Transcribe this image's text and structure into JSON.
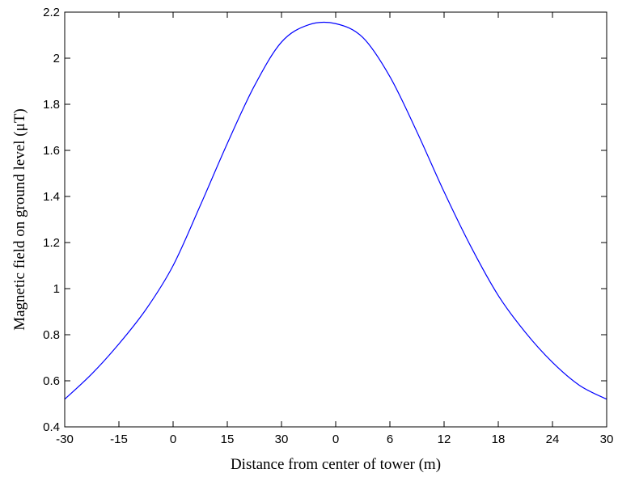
{
  "chart_data": {
    "type": "line",
    "title": "",
    "xlabel": "Distance from center of tower (m)",
    "ylabel": "Magnetic field on ground level (μT)",
    "x_tick_labels": [
      "-30",
      "-15",
      "0",
      "15",
      "30",
      "0",
      "6",
      "12",
      "18",
      "24",
      "30"
    ],
    "y_tick_labels": [
      "0.4",
      "0.6",
      "0.8",
      "1",
      "1.2",
      "1.4",
      "1.6",
      "1.8",
      "2",
      "2.2"
    ],
    "y_tick_values": [
      0.4,
      0.6,
      0.8,
      1.0,
      1.2,
      1.4,
      1.6,
      1.8,
      2.0,
      2.2
    ],
    "ylim": [
      0.4,
      2.2
    ],
    "grid": false,
    "series": [
      {
        "color": "#0000ff",
        "x": [
          0,
          0.5,
          1,
          1.5,
          2,
          2.5,
          3,
          3.5,
          4,
          4.5,
          5,
          5.5,
          6,
          6.5,
          7,
          7.5,
          8,
          8.5,
          9,
          9.5,
          10
        ],
        "y": [
          0.52,
          0.63,
          0.76,
          0.91,
          1.1,
          1.36,
          1.63,
          1.88,
          2.07,
          2.145,
          2.15,
          2.09,
          1.92,
          1.68,
          1.42,
          1.18,
          0.97,
          0.81,
          0.68,
          0.58,
          0.52
        ]
      }
    ]
  }
}
